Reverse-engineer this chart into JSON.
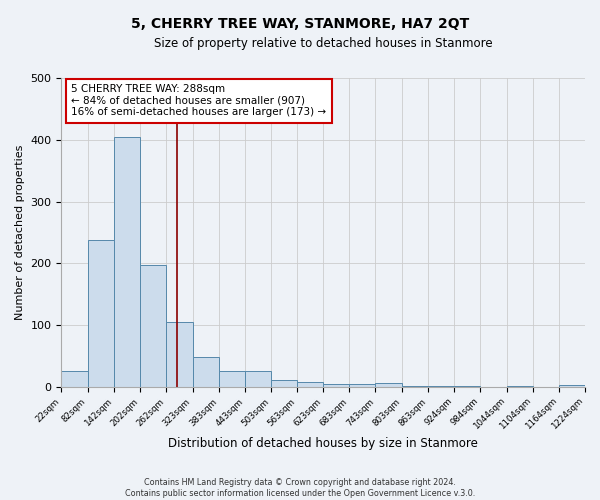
{
  "title": "5, CHERRY TREE WAY, STANMORE, HA7 2QT",
  "subtitle": "Size of property relative to detached houses in Stanmore",
  "xlabel": "Distribution of detached houses by size in Stanmore",
  "ylabel": "Number of detached properties",
  "bin_edges": [
    22,
    82,
    142,
    202,
    262,
    323,
    383,
    443,
    503,
    563,
    623,
    683,
    743,
    803,
    863,
    924,
    984,
    1044,
    1104,
    1164,
    1224
  ],
  "bin_counts": [
    26,
    237,
    404,
    197,
    105,
    48,
    25,
    25,
    11,
    7,
    5,
    5,
    6,
    1,
    1,
    1,
    0,
    1,
    0,
    3
  ],
  "tick_labels": [
    "22sqm",
    "82sqm",
    "142sqm",
    "202sqm",
    "262sqm",
    "323sqm",
    "383sqm",
    "443sqm",
    "503sqm",
    "563sqm",
    "623sqm",
    "683sqm",
    "743sqm",
    "803sqm",
    "863sqm",
    "924sqm",
    "984sqm",
    "1044sqm",
    "1104sqm",
    "1164sqm",
    "1224sqm"
  ],
  "property_size": 288,
  "bar_color": "#ccdcec",
  "bar_edge_color": "#5588aa",
  "red_line_color": "#8b0000",
  "annotation_line1": "5 CHERRY TREE WAY: 288sqm",
  "annotation_line2": "← 84% of detached houses are smaller (907)",
  "annotation_line3": "16% of semi-detached houses are larger (173) →",
  "annotation_box_color": "#ffffff",
  "annotation_box_edge": "#cc0000",
  "ylim": [
    0,
    500
  ],
  "grid_color": "#cccccc",
  "bg_color": "#eef2f7",
  "footer1": "Contains HM Land Registry data © Crown copyright and database right 2024.",
  "footer2": "Contains public sector information licensed under the Open Government Licence v.3.0."
}
